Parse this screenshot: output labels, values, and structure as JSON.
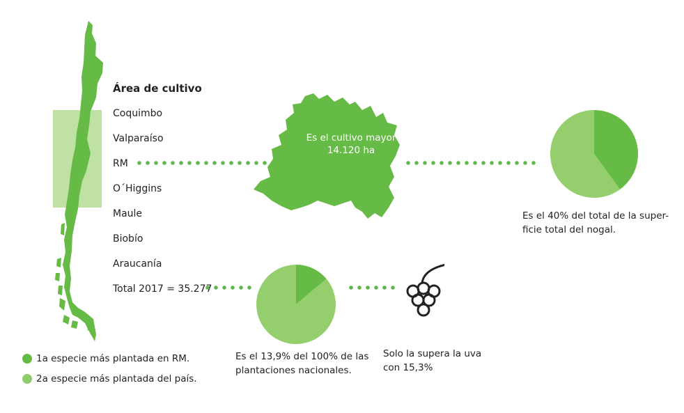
{
  "map_title": "Área de cultivo",
  "regions": [
    {
      "label": "Coquimbo"
    },
    {
      "label": "Valparaíso"
    },
    {
      "label": "RM"
    },
    {
      "label": "O´Higgins"
    },
    {
      "label": "Maule"
    },
    {
      "label": "Biobío"
    },
    {
      "label": "Araucanía"
    },
    {
      "label": "Total 2017 = 35.277"
    }
  ],
  "rm_callout": {
    "line1": "Es el cultivo mayor",
    "line2": "14.120 ha"
  },
  "pie_rm": {
    "caption_line1": "Es el 40% del total de la super-",
    "caption_line2": "ficie total del nogal."
  },
  "pie_national": {
    "caption_line1": "Es el 13,9% del 100%  de las",
    "caption_line2": "plantaciones nacionales."
  },
  "grape_note": {
    "line1": "Solo la supera la uva",
    "line2": "con 15,3%",
    "icon": "grapes-icon"
  },
  "legend": [
    {
      "label": "1a especie más  plantada en RM.",
      "color": "#66bb46"
    },
    {
      "label": "2a  especie más plantada del país.",
      "color": "#8dcc68"
    }
  ],
  "chart_data": [
    {
      "type": "pie",
      "slices": [
        {
          "value": 40,
          "color": "#66bb46"
        },
        {
          "value": 60,
          "color": "#95cf6d"
        }
      ]
    },
    {
      "type": "pie",
      "slices": [
        {
          "value": 13.9,
          "color": "#66bb46"
        },
        {
          "value": 86.1,
          "color": "#95cf6d"
        }
      ]
    }
  ],
  "colors": {
    "dark_green": "#66bb46",
    "light_green": "#95cf6d",
    "highlight": "#bfe2a4"
  }
}
